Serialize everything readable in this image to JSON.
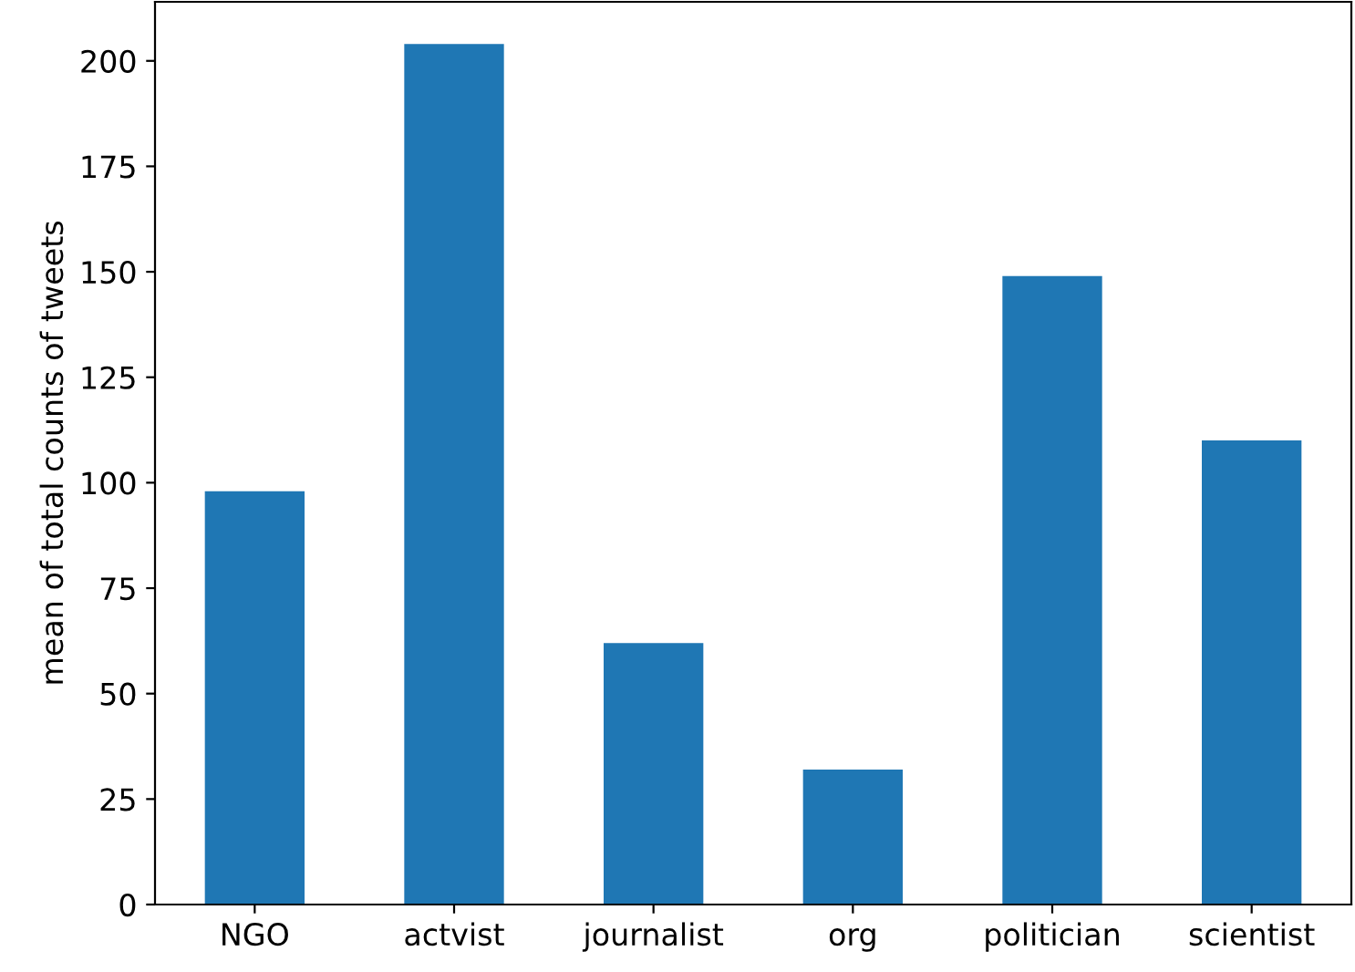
{
  "chart_data": {
    "type": "bar",
    "ylabel": "mean of total counts of tweets",
    "categories": [
      "NGO",
      "actvist",
      "journalist",
      "org",
      "politician",
      "scientist"
    ],
    "values": [
      98,
      204,
      62,
      32,
      149,
      110
    ],
    "color": "#1f77b4",
    "ylim": [
      0,
      214
    ],
    "yticks": [
      0,
      25,
      50,
      75,
      100,
      125,
      150,
      175,
      200
    ],
    "grid": false
  }
}
